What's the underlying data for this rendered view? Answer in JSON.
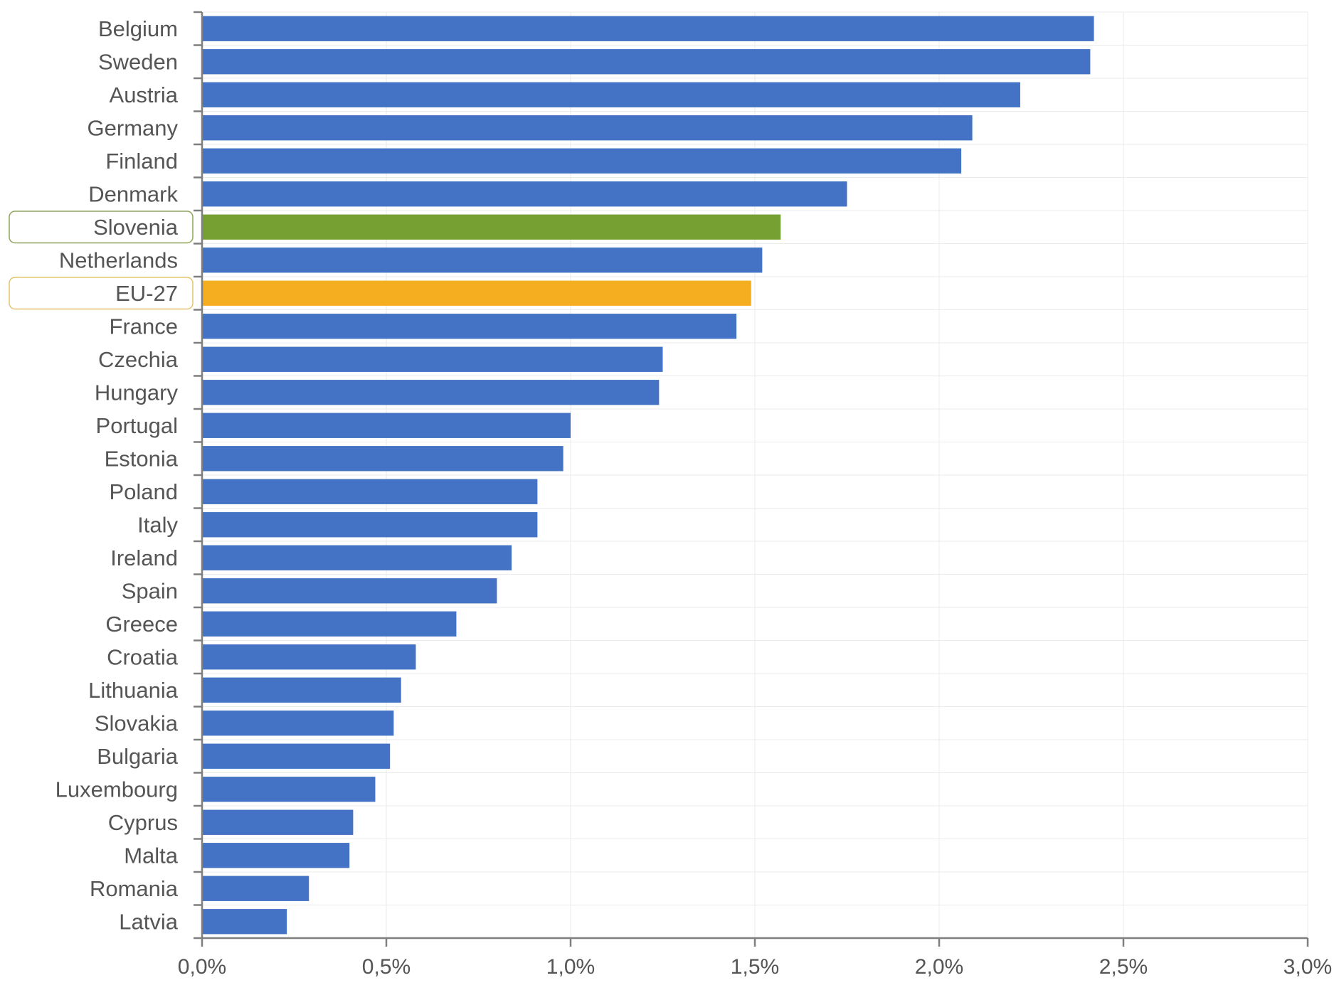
{
  "chart_data": {
    "type": "bar",
    "orientation": "horizontal",
    "title": "",
    "xlabel": "",
    "ylabel": "",
    "xlim": [
      0,
      3.0
    ],
    "x_ticks": [
      {
        "value": 0.0,
        "label": "0,0%"
      },
      {
        "value": 0.5,
        "label": "0,5%"
      },
      {
        "value": 1.0,
        "label": "1,0%"
      },
      {
        "value": 1.5,
        "label": "1,5%"
      },
      {
        "value": 2.0,
        "label": "2,0%"
      },
      {
        "value": 2.5,
        "label": "2,5%"
      },
      {
        "value": 3.0,
        "label": "3,0%"
      }
    ],
    "grid": true,
    "legend": "none",
    "colors": {
      "default": "#4472C4",
      "highlight_country": "#77A033",
      "highlight_eu": "#F5AE20",
      "label_box_country": "#8FA55A",
      "label_box_eu": "#E3C56A",
      "axis": "#7F7F7F",
      "grid": "#EBEBEB"
    },
    "categories": [
      "Belgium",
      "Sweden",
      "Austria",
      "Germany",
      "Finland",
      "Denmark",
      "Slovenia",
      "Netherlands",
      "EU-27",
      "France",
      "Czechia",
      "Hungary",
      "Portugal",
      "Estonia",
      "Poland",
      "Italy",
      "Ireland",
      "Spain",
      "Greece",
      "Croatia",
      "Lithuania",
      "Slovakia",
      "Bulgaria",
      "Luxembourg",
      "Cyprus",
      "Malta",
      "Romania",
      "Latvia"
    ],
    "values": [
      2.42,
      2.41,
      2.22,
      2.09,
      2.06,
      1.75,
      1.57,
      1.52,
      1.49,
      1.45,
      1.25,
      1.24,
      1.0,
      0.98,
      0.91,
      0.91,
      0.84,
      0.8,
      0.69,
      0.58,
      0.54,
      0.52,
      0.51,
      0.47,
      0.41,
      0.4,
      0.29,
      0.23
    ],
    "highlights": [
      {
        "category": "Slovenia",
        "color_key": "highlight_country",
        "box_key": "label_box_country"
      },
      {
        "category": "EU-27",
        "color_key": "highlight_eu",
        "box_key": "label_box_eu"
      }
    ]
  }
}
